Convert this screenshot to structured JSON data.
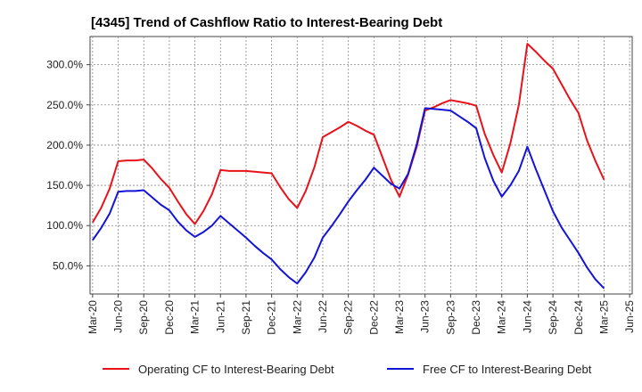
{
  "chart_data": {
    "type": "line",
    "title": "[4345]  Trend of Cashflow Ratio to Interest-Bearing Debt",
    "xlabel": "",
    "ylabel": "",
    "ylim": [
      15,
      335
    ],
    "y_ticks": [
      50,
      100,
      150,
      200,
      250,
      300
    ],
    "y_tick_labels": [
      "50.0%",
      "100.0%",
      "150.0%",
      "200.0%",
      "250.0%",
      "300.0%"
    ],
    "x_tick_labels": [
      "Mar-20",
      "Jun-20",
      "Sep-20",
      "Dec-20",
      "Mar-21",
      "Jun-21",
      "Sep-21",
      "Dec-21",
      "Mar-22",
      "Jun-22",
      "Sep-22",
      "Dec-22",
      "Mar-23",
      "Jun-23",
      "Sep-23",
      "Dec-23",
      "Mar-24",
      "Jun-24",
      "Sep-24",
      "Dec-24",
      "Mar-25",
      "Jun-25"
    ],
    "categories": [
      "Mar-20",
      "Apr-20",
      "May-20",
      "Jun-20",
      "Jul-20",
      "Aug-20",
      "Sep-20",
      "Oct-20",
      "Nov-20",
      "Dec-20",
      "Jan-21",
      "Feb-21",
      "Mar-21",
      "Apr-21",
      "May-21",
      "Jun-21",
      "Jul-21",
      "Aug-21",
      "Sep-21",
      "Oct-21",
      "Nov-21",
      "Dec-21",
      "Jan-22",
      "Feb-22",
      "Mar-22",
      "Apr-22",
      "May-22",
      "Jun-22",
      "Jul-22",
      "Aug-22",
      "Sep-22",
      "Oct-22",
      "Nov-22",
      "Dec-22",
      "Jan-23",
      "Feb-23",
      "Mar-23",
      "Apr-23",
      "May-23",
      "Jun-23",
      "Jul-23",
      "Aug-23",
      "Sep-23",
      "Oct-23",
      "Nov-23",
      "Dec-23",
      "Jan-24",
      "Feb-24",
      "Mar-24",
      "Apr-24",
      "May-24",
      "Jun-24",
      "Jul-24",
      "Aug-24",
      "Sep-24",
      "Oct-24",
      "Nov-24",
      "Dec-24",
      "Jan-25",
      "Feb-25",
      "Mar-25",
      "Apr-25",
      "May-25",
      "Jun-25"
    ],
    "grid": true,
    "legend_position": "bottom",
    "series": [
      {
        "name": "Operating CF to Interest-Bearing Debt",
        "color": "#e8121a",
        "values": [
          104,
          122,
          146,
          180,
          181,
          181,
          182,
          171,
          158,
          147,
          130,
          114,
          102,
          118,
          139,
          169,
          168,
          168,
          168,
          167,
          166,
          165,
          148,
          133,
          122,
          143,
          172,
          210,
          216,
          222,
          229,
          224,
          218,
          213,
          185,
          157,
          136,
          163,
          197,
          243,
          247,
          252,
          256,
          254,
          252,
          249,
          214,
          188,
          166,
          202,
          250,
          326,
          316,
          305,
          295,
          276,
          257,
          240,
          206,
          180,
          157,
          null,
          null,
          null
        ]
      },
      {
        "name": "Free CF to Interest-Bearing Debt",
        "color": "#1414d6",
        "values": [
          82,
          97,
          115,
          142,
          143,
          143,
          144,
          135,
          126,
          119,
          105,
          94,
          86,
          92,
          100,
          112,
          103,
          94,
          85,
          75,
          66,
          58,
          46,
          36,
          28,
          42,
          60,
          85,
          99,
          114,
          130,
          144,
          157,
          172,
          162,
          152,
          146,
          164,
          200,
          246,
          245,
          244,
          243,
          236,
          229,
          221,
          184,
          156,
          136,
          150,
          168,
          198,
          170,
          144,
          118,
          98,
          82,
          66,
          48,
          33,
          22,
          null,
          null,
          null
        ]
      }
    ]
  }
}
